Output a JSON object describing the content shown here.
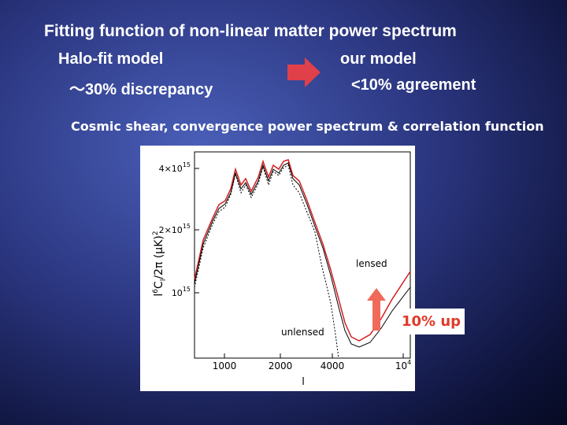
{
  "header": {
    "title": "Fitting function of non-linear matter power spectrum"
  },
  "left": {
    "label": "Halo-fit model",
    "note": "〜30% discrepancy"
  },
  "right": {
    "label": "our model",
    "note": "<10% agreement"
  },
  "subtitle": "Cosmic shear, convergence power spectrum & correlation function",
  "figure": {
    "y_tick_labels": [
      {
        "base": "4×10",
        "exponent": "15"
      },
      {
        "base": "2×10",
        "exponent": "15"
      },
      {
        "base": "10",
        "exponent": "15"
      }
    ],
    "x_tick_labels": [
      {
        "base": "1000"
      },
      {
        "base": "2000"
      },
      {
        "base": "4000"
      },
      {
        "base": "10",
        "exponent": "4"
      }
    ],
    "x_label": "l",
    "y_label": [
      "l",
      "6",
      "C",
      "l",
      "/2π  (μK)",
      "2"
    ],
    "curve_labels": [
      "lensed",
      "unlensed"
    ],
    "callout": "10% up"
  }
}
